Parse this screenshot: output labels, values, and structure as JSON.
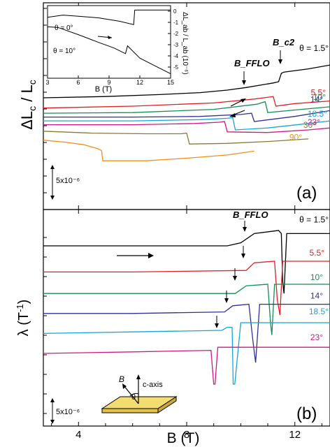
{
  "figure": {
    "x_axis_label": "B (T)",
    "x_ticks": [
      "4",
      "8",
      "12"
    ],
    "x_range": [
      2.7,
      13.3
    ]
  },
  "chart_data": [
    {
      "type": "line",
      "panel_label": "(a)",
      "ylabel": "ΔL_c / L_c",
      "scale_bar": "5x10⁻⁶",
      "annotations": [
        "B_FFLO",
        "B_c2"
      ],
      "series": [
        {
          "name": "θ = 1.5°",
          "color": "#000000",
          "x": [
            2.7,
            5,
            7,
            8.5,
            9.5,
            10.2,
            11.2,
            11.4,
            11.5,
            11.6,
            12.5,
            13.3
          ],
          "y": [
            0,
            0.2,
            0.5,
            0.8,
            1.2,
            1.6,
            2.3,
            2.5,
            3.8,
            4.0,
            4.5,
            5.1
          ]
        },
        {
          "name": "5.5°",
          "color": "#e02020",
          "x": [
            2.7,
            6,
            9,
            10.5,
            11.2,
            11.3,
            12,
            13.3
          ],
          "y": [
            -1.6,
            -1.3,
            -0.8,
            -0.2,
            0.2,
            -1.3,
            -0.9,
            -0.5
          ]
        },
        {
          "name": "10°",
          "color": "#109050",
          "x": [
            2.7,
            6,
            9,
            10.6,
            10.9,
            11.0,
            12,
            13.3
          ],
          "y": [
            -2.4,
            -2.3,
            -1.8,
            -1.0,
            -0.6,
            -2.3,
            -1.9,
            -1.4
          ]
        },
        {
          "name": "14°",
          "color": "#303090",
          "x": [
            2.7,
            6,
            8.5,
            10,
            10.4,
            10.5,
            12,
            13.3
          ],
          "y": [
            -3.0,
            -3.0,
            -2.9,
            -2.6,
            -2.4,
            -3.7,
            -2.9,
            -2.0
          ]
        },
        {
          "name": "18.5°",
          "color": "#10a8d8",
          "x": [
            2.7,
            6,
            8.5,
            9.5,
            9.7,
            9.8,
            11,
            12.5,
            13.3
          ],
          "y": [
            -3.6,
            -3.6,
            -3.4,
            -3.2,
            -3.1,
            -5.0,
            -4.7,
            -4.0,
            -3.6
          ]
        },
        {
          "name": "23°",
          "color": "#d01880",
          "x": [
            2.7,
            6,
            8.3,
            9.2,
            9.4,
            9.5,
            11,
            12.5,
            13.3
          ],
          "y": [
            -4.2,
            -4.2,
            -4.0,
            -3.8,
            -3.7,
            -5.3,
            -5.4,
            -5.0,
            -4.7
          ]
        },
        {
          "name": "30°",
          "color": "#8a7a30",
          "x": [
            2.7,
            4.5,
            6.5,
            7.8,
            8.0,
            8.1,
            9.5,
            11,
            12.5
          ],
          "y": [
            -5.2,
            -5.5,
            -5.6,
            -5.6,
            -5.5,
            -7.2,
            -7.1,
            -6.8,
            -6.4
          ]
        },
        {
          "name": "90°",
          "color": "#f0901a",
          "x": [
            2.7,
            3.5,
            4.2,
            4.7,
            4.85,
            4.9,
            6.5,
            8,
            9.5,
            10.5
          ],
          "y": [
            -6.6,
            -6.9,
            -7.3,
            -7.9,
            -8.2,
            -9.8,
            -9.8,
            -9.4,
            -8.9,
            -8.3
          ]
        }
      ]
    },
    {
      "type": "line",
      "panel_label": "inset",
      "xlabel": "B (T)",
      "ylabel": "ΔL_ab / L_ab (10⁻⁶)",
      "x_ticks": [
        "3",
        "6",
        "9",
        "12",
        "15"
      ],
      "y_ticks": [
        "0",
        "-1",
        "-2",
        "-3",
        "-4",
        "-5"
      ],
      "xlim": [
        3,
        15
      ],
      "ylim": [
        -6,
        0.5
      ],
      "series": [
        {
          "name": "θ = 0°",
          "color": "#000000",
          "x": [
            3,
            4.5,
            6,
            8,
            10,
            11.4,
            11.5,
            12.5,
            15
          ],
          "y": [
            -0.55,
            -0.35,
            -0.45,
            -0.6,
            -0.9,
            -1.2,
            0.1,
            0.1,
            0.1
          ]
        },
        {
          "name": "θ = 10°",
          "color": "#000000",
          "x": [
            3,
            4,
            6,
            8,
            9.5,
            10.6,
            10.8,
            12,
            13.5,
            15
          ],
          "y": [
            -1.4,
            -1.45,
            -2.1,
            -2.8,
            -3.3,
            -3.8,
            -3.1,
            -4.2,
            -4.9,
            -5.6
          ]
        }
      ]
    },
    {
      "type": "line",
      "panel_label": "(b)",
      "ylabel": "λ (T⁻¹)",
      "scale_bar": "5x10⁻⁶",
      "annotations": [
        "B_FFLO",
        "c-axis",
        "B",
        "θ"
      ],
      "series": [
        {
          "name": "θ = 1.5°",
          "color": "#000000",
          "x": [
            2.7,
            6,
            9.5,
            10.0,
            10.5,
            11.4,
            11.5,
            11.55,
            11.6,
            11.7,
            12.5,
            13.3
          ],
          "y": [
            0,
            0,
            0,
            0.2,
            0.8,
            1.0,
            0.8,
            -2.3,
            -3.1,
            0.8,
            0.8,
            0.8
          ]
        },
        {
          "name": "5.5°",
          "color": "#e02020",
          "x": [
            2.7,
            6,
            10.2,
            10.5,
            11.25,
            11.35,
            11.45,
            11.55,
            12.5,
            13.3
          ],
          "y": [
            -1.7,
            -1.7,
            -1.6,
            -1.1,
            -1.0,
            -3.5,
            -4.5,
            -1.0,
            -1.0,
            -1.0
          ]
        },
        {
          "name": "10°",
          "color": "#109050",
          "x": [
            2.7,
            6,
            9.8,
            10.2,
            11.0,
            11.1,
            11.15,
            11.25,
            12.5,
            13.3
          ],
          "y": [
            -3.1,
            -3.1,
            -3.1,
            -2.6,
            -2.5,
            -5.0,
            -5.8,
            -2.5,
            -2.5,
            -2.5
          ]
        },
        {
          "name": "14°",
          "color": "#303090",
          "x": [
            2.7,
            6,
            9.4,
            9.7,
            10.3,
            10.45,
            10.55,
            10.7,
            12.5,
            13.3
          ],
          "y": [
            -4.4,
            -4.4,
            -4.3,
            -3.9,
            -3.8,
            -6.2,
            -7.6,
            -3.8,
            -3.8,
            -3.8
          ]
        },
        {
          "name": "18.5°",
          "color": "#10a8d8",
          "x": [
            2.7,
            6,
            9.3,
            9.5,
            9.68,
            9.72,
            9.78,
            10.0,
            12.5,
            13.3
          ],
          "y": [
            -5.7,
            -5.6,
            -5.5,
            -5.3,
            -5.3,
            -9.0,
            -9.0,
            -5.0,
            -5.0,
            -5.0
          ]
        },
        {
          "name": "23°",
          "color": "#d01880",
          "x": [
            2.7,
            6,
            8.9,
            9.0,
            9.05,
            9.15,
            9.3,
            12.5,
            13.3
          ],
          "y": [
            -7.0,
            -6.9,
            -6.8,
            -9.0,
            -9.0,
            -6.6,
            -6.6,
            -6.6,
            -6.6
          ]
        }
      ]
    }
  ]
}
